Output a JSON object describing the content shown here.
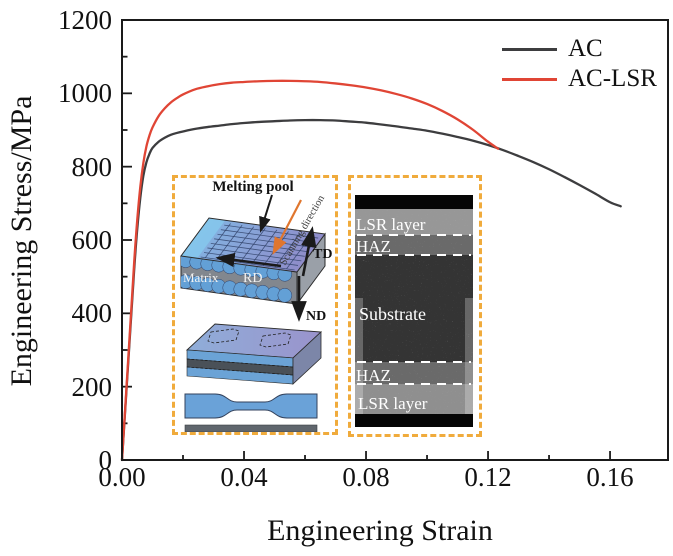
{
  "chart_data": {
    "type": "line",
    "title": "",
    "xlabel": "Engineering Strain",
    "ylabel": "Engineering Stress/MPa",
    "xlim": [
      0,
      0.179
    ],
    "ylim": [
      0,
      1200
    ],
    "x_ticks": [
      0,
      0.04,
      0.08,
      0.12,
      0.16
    ],
    "x_tick_labels": [
      "0.00",
      "0.04",
      "0.08",
      "0.12",
      "0.16"
    ],
    "x_minor_tick_step": 0.02,
    "y_ticks": [
      0,
      200,
      400,
      600,
      800,
      1000,
      1200
    ],
    "y_tick_labels": [
      "0",
      "200",
      "400",
      "600",
      "800",
      "1000",
      "1200"
    ],
    "y_minor_tick_step": 100,
    "grid": false,
    "frame_color": "#1a1a1a",
    "legend": {
      "position": "top-right",
      "entries": [
        {
          "label": "AC",
          "color": "#3d3d3f"
        },
        {
          "label": "AC-LSR",
          "color": "#e04535"
        }
      ]
    },
    "series": [
      {
        "name": "AC",
        "color": "#3d3d3f",
        "points": [
          [
            0,
            0
          ],
          [
            0.002,
            260
          ],
          [
            0.004,
            520
          ],
          [
            0.005,
            630
          ],
          [
            0.006,
            715
          ],
          [
            0.007,
            775
          ],
          [
            0.008,
            812
          ],
          [
            0.009,
            835
          ],
          [
            0.01,
            851
          ],
          [
            0.012,
            868
          ],
          [
            0.014,
            879
          ],
          [
            0.016,
            887
          ],
          [
            0.018,
            892
          ],
          [
            0.02,
            896
          ],
          [
            0.024,
            903
          ],
          [
            0.028,
            908
          ],
          [
            0.032,
            912
          ],
          [
            0.036,
            916
          ],
          [
            0.04,
            919
          ],
          [
            0.045,
            922
          ],
          [
            0.05,
            924
          ],
          [
            0.055,
            926
          ],
          [
            0.06,
            927
          ],
          [
            0.065,
            927
          ],
          [
            0.07,
            926
          ],
          [
            0.075,
            923
          ],
          [
            0.08,
            920
          ],
          [
            0.085,
            915
          ],
          [
            0.09,
            910
          ],
          [
            0.095,
            904
          ],
          [
            0.1,
            898
          ],
          [
            0.105,
            890
          ],
          [
            0.11,
            881
          ],
          [
            0.115,
            871
          ],
          [
            0.12,
            859
          ],
          [
            0.125,
            845
          ],
          [
            0.13,
            829
          ],
          [
            0.135,
            812
          ],
          [
            0.14,
            793
          ],
          [
            0.145,
            772
          ],
          [
            0.15,
            750
          ],
          [
            0.155,
            727
          ],
          [
            0.16,
            703
          ],
          [
            0.1635,
            692
          ]
        ]
      },
      {
        "name": "AC-LSR",
        "color": "#e04535",
        "points": [
          [
            0,
            0
          ],
          [
            0.002,
            270
          ],
          [
            0.004,
            540
          ],
          [
            0.005,
            655
          ],
          [
            0.006,
            745
          ],
          [
            0.007,
            810
          ],
          [
            0.008,
            855
          ],
          [
            0.009,
            885
          ],
          [
            0.01,
            907
          ],
          [
            0.012,
            938
          ],
          [
            0.014,
            959
          ],
          [
            0.016,
            975
          ],
          [
            0.018,
            987
          ],
          [
            0.02,
            997
          ],
          [
            0.024,
            1011
          ],
          [
            0.028,
            1019
          ],
          [
            0.032,
            1025
          ],
          [
            0.036,
            1029
          ],
          [
            0.04,
            1031
          ],
          [
            0.045,
            1033
          ],
          [
            0.05,
            1034
          ],
          [
            0.055,
            1034
          ],
          [
            0.06,
            1033
          ],
          [
            0.065,
            1031
          ],
          [
            0.07,
            1027
          ],
          [
            0.075,
            1022
          ],
          [
            0.08,
            1016
          ],
          [
            0.085,
            1008
          ],
          [
            0.09,
            998
          ],
          [
            0.095,
            986
          ],
          [
            0.1,
            971
          ],
          [
            0.105,
            952
          ],
          [
            0.11,
            929
          ],
          [
            0.115,
            901
          ],
          [
            0.12,
            868
          ],
          [
            0.1233,
            849
          ]
        ]
      }
    ]
  },
  "insets": {
    "schematic": {
      "border_color": "#f0ab3c",
      "labels": {
        "melting_pool": "Melting pool",
        "scanning_direction": "Scanning direction",
        "td": "TD",
        "rd": "RD",
        "nd": "ND",
        "matrix": "Matrix"
      }
    },
    "micrograph": {
      "border_color": "#f0ab3c",
      "labels": {
        "top_lsr": "LSR layer",
        "top_haz": "HAZ",
        "substrate": "Substrate",
        "bottom_haz": "HAZ",
        "bottom_lsr": "LSR layer"
      }
    }
  }
}
